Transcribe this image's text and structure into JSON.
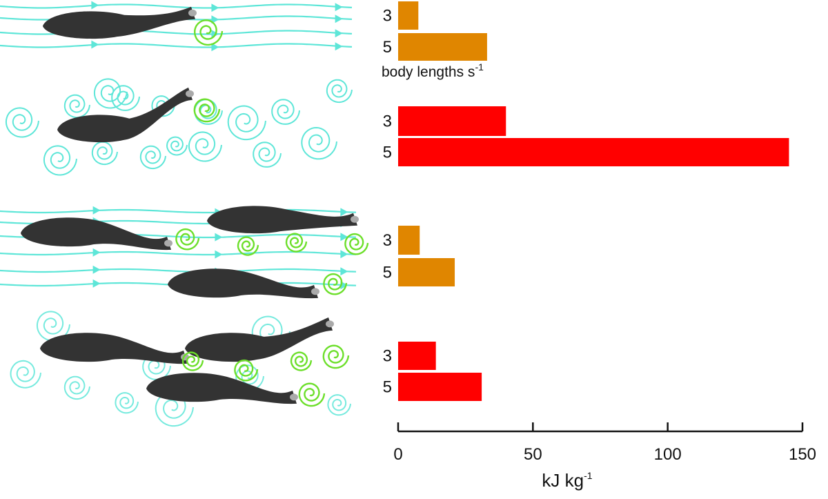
{
  "chart_data": {
    "type": "bar",
    "orientation": "horizontal",
    "panels": [
      {
        "scene": "single-fish-uniform-flow",
        "color": "#E08600",
        "bars": [
          {
            "category": "3",
            "value": 7.5
          },
          {
            "category": "5",
            "value": 33
          }
        ]
      },
      {
        "scene": "single-fish-turbulent-flow",
        "color": "#FF0000",
        "bars": [
          {
            "category": "3",
            "value": 40
          },
          {
            "category": "5",
            "value": 145
          }
        ]
      },
      {
        "scene": "school-uniform-flow",
        "color": "#E08600",
        "bars": [
          {
            "category": "3",
            "value": 8
          },
          {
            "category": "5",
            "value": 21
          }
        ]
      },
      {
        "scene": "school-turbulent-flow",
        "color": "#FF0000",
        "bars": [
          {
            "category": "3",
            "value": 14
          },
          {
            "category": "5",
            "value": 31
          }
        ]
      }
    ],
    "category_note": "body lengths s",
    "category_note_sup": "-1",
    "xlabel": "kJ kg",
    "xlabel_sup": "-1",
    "xlim": [
      0,
      150
    ],
    "xticks": [
      0,
      50,
      100,
      150
    ],
    "grid": false,
    "legend": "none"
  },
  "colors": {
    "fish": "#333333",
    "fin": "#aaaaaa",
    "streamline": "#5EE6D8",
    "vortex": "#5EE6D8",
    "vortex_shed": "#6CDF2A"
  }
}
